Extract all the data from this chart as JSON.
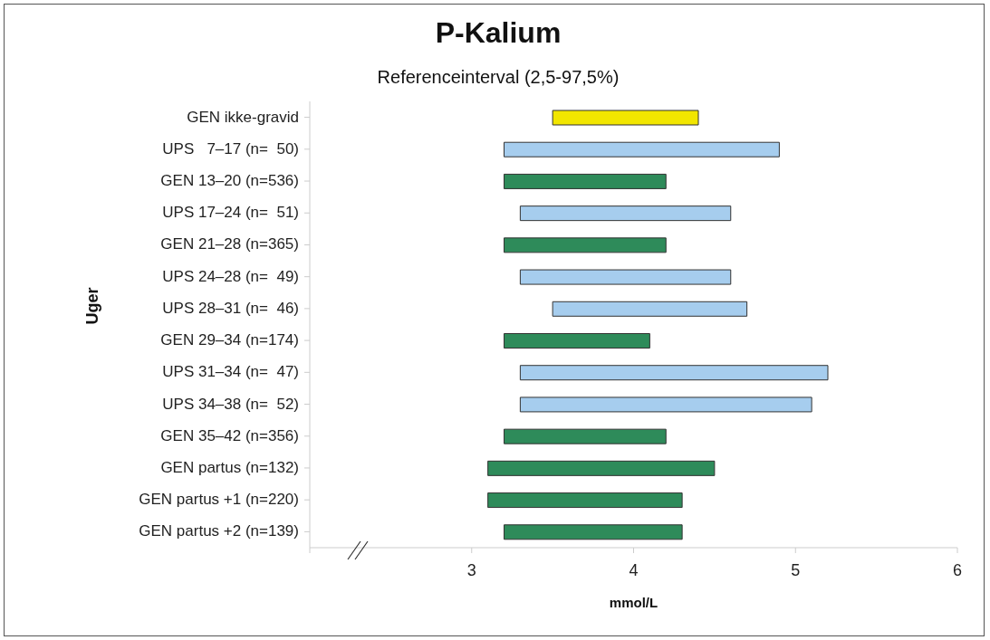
{
  "chart_data": {
    "type": "bar",
    "orientation": "horizontal",
    "title": "P-Kalium",
    "subtitle": "Referenceinterval (2,5-97,5%)",
    "xlabel": "mmol/L",
    "ylabel": "Uger",
    "categories": [
      "GEN ikke-gravid",
      "UPS   7–17 (n=  50)",
      "GEN 13–20 (n=536)",
      "UPS 17–24 (n=  51)",
      "GEN 21–28 (n=365)",
      "UPS 24–28 (n=  49)",
      "UPS 28–31 (n=  46)",
      "GEN 29–34 (n=174)",
      "UPS 31–34 (n=  47)",
      "UPS 34–38 (n=  52)",
      "GEN 35–42 (n=356)",
      "GEN partus (n=132)",
      "GEN partus +1 (n=220)",
      "GEN partus +2 (n=139)"
    ],
    "base": [
      3.5,
      3.2,
      3.2,
      3.3,
      3.2,
      3.3,
      3.5,
      3.2,
      3.3,
      3.3,
      3.2,
      3.1,
      3.1,
      3.2
    ],
    "values": [
      0.9,
      1.7,
      1.0,
      1.3,
      1.0,
      1.3,
      1.2,
      0.9,
      1.9,
      1.8,
      1.0,
      1.4,
      1.2,
      1.1
    ],
    "colors": [
      "#f2e600",
      "#a6cdee",
      "#2e8b5a",
      "#a6cdee",
      "#2e8b5a",
      "#a6cdee",
      "#a6cdee",
      "#2e8b5a",
      "#a6cdee",
      "#a6cdee",
      "#2e8b5a",
      "#2e8b5a",
      "#2e8b5a",
      "#2e8b5a"
    ],
    "xlim": [
      2,
      6
    ],
    "xticks": [
      {
        "value": 2,
        "label": null
      },
      3,
      4,
      5,
      6
    ],
    "grid": false,
    "legend": false
  }
}
